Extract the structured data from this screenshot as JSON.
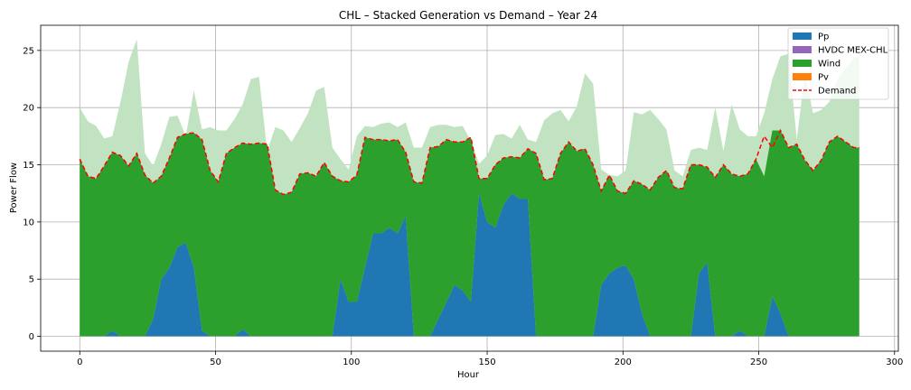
{
  "chart_data": {
    "type": "area",
    "title": "CHL – Stacked Generation vs Demand – Year 24",
    "xlabel": "Hour",
    "ylabel": "Power Flow",
    "xlim": [
      -14.4,
      301.4
    ],
    "ylim": [
      -1.3,
      27.2
    ],
    "xticks": [
      0,
      50,
      100,
      150,
      200,
      250,
      300
    ],
    "yticks": [
      0,
      5,
      10,
      15,
      20,
      25
    ],
    "grid": true,
    "legend_position": "top-right",
    "x": [
      0,
      3,
      6,
      9,
      12,
      15,
      18,
      21,
      24,
      27,
      30,
      33,
      36,
      39,
      42,
      45,
      48,
      51,
      54,
      57,
      60,
      63,
      66,
      69,
      72,
      75,
      78,
      81,
      84,
      87,
      90,
      93,
      96,
      99,
      102,
      105,
      108,
      111,
      114,
      117,
      120,
      123,
      126,
      129,
      132,
      135,
      138,
      141,
      144,
      147,
      150,
      153,
      156,
      159,
      162,
      165,
      168,
      171,
      174,
      177,
      180,
      183,
      186,
      189,
      192,
      195,
      198,
      201,
      204,
      207,
      210,
      213,
      216,
      219,
      222,
      225,
      228,
      231,
      234,
      237,
      240,
      243,
      246,
      249,
      252,
      255,
      258,
      261,
      264,
      267,
      270,
      273,
      276,
      279,
      282,
      285,
      287
    ],
    "series": [
      {
        "name": "Pp",
        "color": "#1f77b4",
        "values": [
          0,
          0,
          0,
          0,
          0.5,
          0,
          0,
          0,
          0,
          1.5,
          5,
          6,
          7.8,
          8.2,
          6,
          0.5,
          0,
          0,
          0,
          0,
          0.6,
          0,
          0,
          0,
          0,
          0,
          0,
          0,
          0,
          0,
          0,
          0,
          5,
          3,
          3,
          6,
          9,
          9,
          9.5,
          9,
          10.5,
          0,
          0,
          0,
          1.5,
          3,
          4.5,
          4,
          3,
          12.5,
          10,
          9.5,
          11.5,
          12.5,
          12,
          12,
          0,
          0,
          0,
          0,
          0,
          0,
          0,
          0,
          4.5,
          5.5,
          6,
          6.2,
          5,
          2,
          0,
          0,
          0,
          0,
          0,
          0,
          5.5,
          6.5,
          0,
          0,
          0,
          0.5,
          0,
          0,
          0,
          3.5,
          2,
          0,
          0,
          0,
          0,
          0,
          0,
          0,
          0,
          0,
          0
        ]
      },
      {
        "name": "HVDC MEX-CHL",
        "color": "#9467bd",
        "values": [
          0,
          0,
          0,
          0,
          0,
          0,
          0,
          0,
          0,
          0,
          0,
          0,
          0,
          0,
          0,
          0,
          0,
          0,
          0,
          0,
          0,
          0,
          0,
          0,
          0,
          0,
          0,
          0,
          0,
          0,
          0,
          0,
          0,
          0,
          0,
          0,
          0,
          0,
          0,
          0,
          0,
          0,
          0,
          0,
          0,
          0,
          0,
          0,
          0,
          0,
          0,
          0,
          0,
          0,
          0,
          0,
          0,
          0,
          0,
          0,
          0,
          0,
          0,
          0,
          0,
          0,
          0,
          0,
          0,
          0,
          0,
          0,
          0,
          0,
          0,
          0,
          0,
          0,
          0,
          0,
          0,
          0,
          0,
          0,
          0,
          0,
          0,
          0,
          0,
          0,
          0,
          0,
          0,
          0,
          0,
          0,
          0
        ]
      },
      {
        "name": "Wind",
        "color": "#2ca02c",
        "values": [
          15.5,
          14.0,
          13.8,
          14.9,
          15.6,
          15.8,
          14.9,
          16.0,
          14.1,
          11.9,
          9.0,
          9.6,
          9.6,
          9.5,
          11.8,
          16.7,
          14.5,
          13.5,
          16.0,
          16.5,
          16.3,
          16.8,
          16.9,
          16.8,
          12.8,
          12.4,
          12.6,
          14.2,
          14.3,
          14.0,
          15.2,
          14.0,
          8.6,
          10.5,
          11.1,
          11.4,
          8.2,
          8.2,
          7.6,
          8.2,
          5.6,
          13.5,
          13.4,
          16.5,
          15.1,
          14.2,
          12.5,
          13.0,
          14.4,
          1.3,
          3.8,
          5.5,
          4.1,
          3.2,
          3.6,
          4.4,
          16.0,
          13.7,
          13.8,
          16.0,
          17.0,
          16.2,
          16.4,
          15.0,
          8.2,
          8.6,
          6.7,
          6.3,
          8.6,
          11.3,
          12.8,
          13.9,
          14.5,
          13.0,
          12.9,
          15.0,
          9.5,
          8.3,
          13.9,
          15.0,
          14.2,
          13.5,
          14.2,
          15.5,
          14.0,
          14.5,
          16.0,
          16.5,
          16.8,
          15.4,
          14.5,
          15.4,
          17.0,
          17.5,
          17.0,
          16.5,
          16.5
        ]
      },
      {
        "name": "Pv",
        "color": "#ff7f0e",
        "values": [
          0,
          0,
          0,
          0,
          0,
          0,
          0,
          0,
          0,
          0,
          0,
          0,
          0,
          0,
          0,
          0,
          0,
          0,
          0,
          0,
          0,
          0,
          0,
          0,
          0,
          0,
          0,
          0,
          0,
          0,
          0,
          0,
          0,
          0,
          0,
          0,
          0,
          0,
          0,
          0,
          0,
          0,
          0,
          0,
          0,
          0,
          0,
          0,
          0,
          0,
          0,
          0,
          0,
          0,
          0,
          0,
          0,
          0,
          0,
          0,
          0,
          0,
          0,
          0,
          0,
          0,
          0,
          0,
          0,
          0,
          0,
          0,
          0,
          0,
          0,
          0,
          0,
          0,
          0,
          0,
          0,
          0,
          0,
          0,
          0,
          0,
          0,
          0,
          0,
          0,
          0,
          0,
          0,
          0,
          0,
          0,
          0
        ]
      }
    ],
    "demand": {
      "name": "Demand",
      "color": "#ff0000",
      "values": [
        15.5,
        14.0,
        13.8,
        14.9,
        16.1,
        15.8,
        14.9,
        16.0,
        14.1,
        13.4,
        14.0,
        15.6,
        17.4,
        17.7,
        17.8,
        17.2,
        14.5,
        13.5,
        16.0,
        16.5,
        16.9,
        16.8,
        16.9,
        16.8,
        12.8,
        12.4,
        12.6,
        14.2,
        14.3,
        14.0,
        15.2,
        14.0,
        13.6,
        13.5,
        14.1,
        17.4,
        17.2,
        17.2,
        17.1,
        17.2,
        16.1,
        13.5,
        13.4,
        16.5,
        16.6,
        17.2,
        17.0,
        17.0,
        17.4,
        13.8,
        13.8,
        15.0,
        15.6,
        15.7,
        15.6,
        16.4,
        16.0,
        13.7,
        13.8,
        16.0,
        17.0,
        16.2,
        16.4,
        15.0,
        12.7,
        14.1,
        12.7,
        12.5,
        13.6,
        13.3,
        12.8,
        13.9,
        14.5,
        13.0,
        12.9,
        15.0,
        15.0,
        14.8,
        13.9,
        15.0,
        14.2,
        14.0,
        14.2,
        15.5,
        17.5,
        16.5,
        18.0,
        16.5,
        16.8,
        15.4,
        14.5,
        15.4,
        17.0,
        17.5,
        17.0,
        16.5,
        16.5
      ]
    },
    "upper_envelope": {
      "color": "#c2e3c2",
      "values": [
        20,
        18.8,
        18.4,
        17.3,
        17.5,
        20.5,
        24,
        26,
        16,
        14.9,
        16.8,
        19.2,
        19.3,
        17.5,
        21.5,
        18.1,
        18.3,
        18,
        18,
        19,
        20.3,
        22.5,
        22.7,
        16.2,
        18.3,
        18,
        17,
        18.2,
        19.5,
        21.5,
        21.8,
        16.5,
        15.5,
        14.6,
        17.5,
        18.4,
        18.3,
        18.6,
        18.7,
        18.3,
        18.7,
        16.5,
        16.5,
        18.3,
        18.5,
        18.5,
        18.3,
        18.4,
        17.1,
        15.1,
        15.8,
        17.6,
        17.7,
        17.3,
        18.5,
        17.2,
        17,
        18.9,
        19.5,
        19.8,
        18.8,
        20.1,
        23,
        22.1,
        14.6,
        14.1,
        14,
        14.5,
        19.6,
        19.4,
        19.8,
        19,
        18.1,
        14.5,
        14,
        16.3,
        16.5,
        16.3,
        20,
        16.2,
        20.3,
        18.1,
        17.5,
        17.5,
        19.5,
        22.5,
        24.5,
        24.7,
        17.2,
        23,
        19.5,
        19.8,
        20.5,
        22.5,
        23.5,
        24.3,
        24.5
      ]
    },
    "legend": [
      "Pp",
      "HVDC MEX-CHL",
      "Wind",
      "Pv",
      "Demand"
    ]
  }
}
